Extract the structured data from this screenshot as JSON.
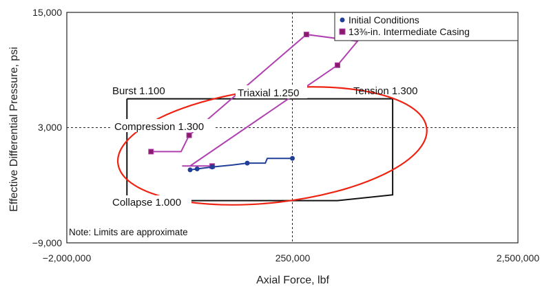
{
  "chart_data": {
    "type": "scatter",
    "xlabel": "Axial Force, lbf",
    "ylabel": "Effective Differential Pressure, psi",
    "xlim": [
      -2000000,
      2500000
    ],
    "ylim": [
      -9000,
      15000
    ],
    "x_ticks": [
      "−2,000,000",
      "250,000",
      "2,500,000"
    ],
    "y_ticks": [
      "15,000",
      "3,000",
      "−9,000"
    ],
    "reference_lines": {
      "x": 250000,
      "y": 3000,
      "style": "dashed"
    },
    "legend": {
      "position": "top-right",
      "entries": [
        "Initial Conditions",
        "13⅜-in. Intermediate Casing"
      ]
    },
    "colors": {
      "initial": "#1f3f99",
      "casing_line": "#b040b0",
      "casing_marker": "#8a1a6a",
      "triaxial": "#ee2211",
      "limits": "#111111"
    },
    "series": [
      {
        "name": "Initial Conditions",
        "line": [
          [
            -770000,
            -1400
          ],
          [
            -700000,
            -1300
          ],
          [
            -550000,
            -1100
          ],
          [
            -350000,
            -900
          ],
          [
            -200000,
            -700
          ],
          [
            -20000,
            -700
          ],
          [
            0,
            -200
          ],
          [
            120000,
            -200
          ],
          [
            250000,
            -200
          ]
        ],
        "markers": [
          [
            -770000,
            -1400
          ],
          [
            -700000,
            -1300
          ],
          [
            -550000,
            -1100
          ],
          [
            -200000,
            -700
          ],
          [
            250000,
            -200
          ]
        ]
      },
      {
        "name": "13⅜-in. Intermediate Casing",
        "line": [
          [
            -1160000,
            500
          ],
          [
            -860000,
            500
          ],
          [
            -780000,
            2200
          ],
          [
            390000,
            12700
          ],
          [
            900000,
            12000
          ],
          [
            700000,
            9500
          ],
          [
            -770000,
            -1000
          ],
          [
            -550000,
            -1000
          ],
          [
            -850000,
            -1000
          ]
        ],
        "markers": [
          [
            -1160000,
            500
          ],
          [
            -780000,
            2200
          ],
          [
            390000,
            12700
          ],
          [
            700000,
            9500
          ],
          [
            -550000,
            -1000
          ]
        ]
      }
    ],
    "limit_box": [
      [
        -1400000,
        6000
      ],
      [
        -1100000,
        6000
      ],
      [
        -400000,
        6000
      ],
      [
        550000,
        6000
      ],
      [
        1250000,
        6000
      ],
      [
        1250000,
        -4000
      ],
      [
        700000,
        -4600
      ],
      [
        -1400000,
        -4600
      ],
      [
        -1400000,
        6000
      ]
    ],
    "triaxial_ellipse": {
      "center": [
        50000,
        1100
      ],
      "rx": 1550000,
      "ry": 5900,
      "rotation_deg": -6.5
    },
    "annotations": {
      "burst": "Burst 1.100",
      "triaxial": "Triaxial 1.250",
      "tension": "Tension 1.300",
      "compression": "Compression 1.300",
      "collapse": "Collapse 1.000",
      "note": "Note: Limits are approximate"
    }
  }
}
